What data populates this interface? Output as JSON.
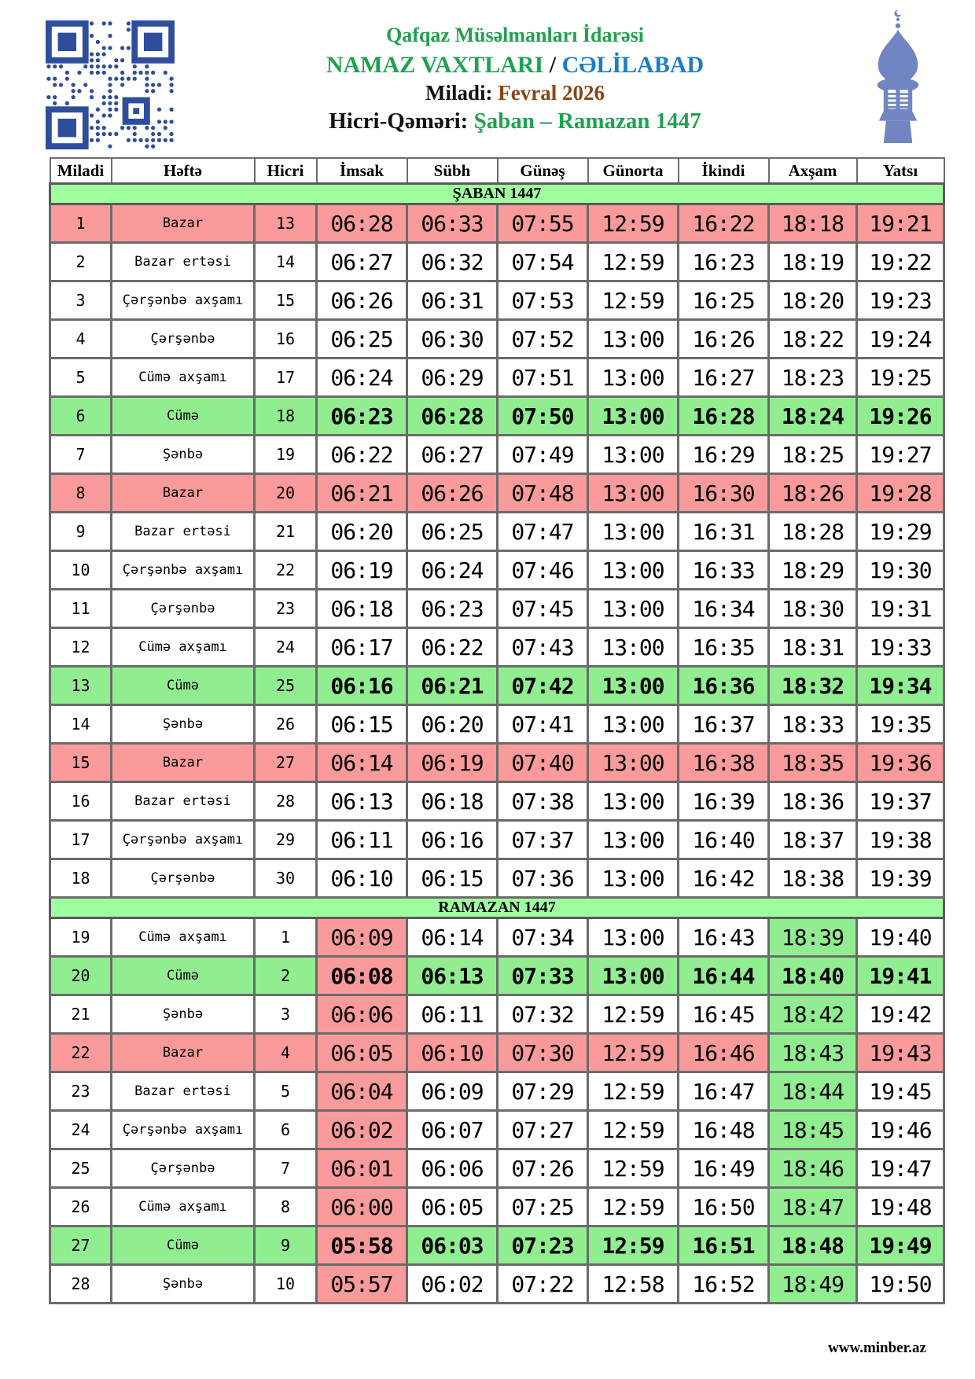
{
  "header": {
    "org": "Qafqaz Müsəlmanları İdarəsi",
    "title_main": "NAMAZ VAXTLARI",
    "title_sep": " / ",
    "city": "CƏLİLABAD",
    "miladi_label": "Miladi: ",
    "miladi_value": "Fevral 2026",
    "hicri_label": "Hicri-Qəməri: ",
    "hicri_value": "Şaban – Ramazan 1447"
  },
  "icons": {
    "qr": "qr-code-icon",
    "minaret": "minaret-icon"
  },
  "colors": {
    "green_text": "#1FA24F",
    "blue_text": "#1B7CC8",
    "brown_text": "#8B4513",
    "sunday_row": "#FA9A9A",
    "friday_row": "#90EE90",
    "section_row": "#A0FFA0",
    "imsak_highlight": "#FA9A9A",
    "axsam_highlight": "#90EE90",
    "qr_blue": "#2E4E9C",
    "minaret_blue": "#7285C3"
  },
  "table": {
    "columns": [
      "Miladi",
      "Həftə",
      "Hicri",
      "İmsak",
      "Sübh",
      "Günəş",
      "Günorta",
      "İkindi",
      "Axşam",
      "Yatsı"
    ],
    "sections": [
      {
        "title": "ŞABAN 1447",
        "imsak_highlight": false,
        "rows": [
          {
            "miladi": "1",
            "hefte": "Bazar",
            "hicri": "13",
            "style": "sunday",
            "times": [
              "06:28",
              "06:33",
              "07:55",
              "12:59",
              "16:22",
              "18:18",
              "19:21"
            ]
          },
          {
            "miladi": "2",
            "hefte": "Bazar ertəsi",
            "hicri": "14",
            "style": "normal",
            "times": [
              "06:27",
              "06:32",
              "07:54",
              "12:59",
              "16:23",
              "18:19",
              "19:22"
            ]
          },
          {
            "miladi": "3",
            "hefte": "Çərşənbə axşamı",
            "hicri": "15",
            "style": "normal",
            "times": [
              "06:26",
              "06:31",
              "07:53",
              "12:59",
              "16:25",
              "18:20",
              "19:23"
            ]
          },
          {
            "miladi": "4",
            "hefte": "Çərşənbə",
            "hicri": "16",
            "style": "normal",
            "times": [
              "06:25",
              "06:30",
              "07:52",
              "13:00",
              "16:26",
              "18:22",
              "19:24"
            ]
          },
          {
            "miladi": "5",
            "hefte": "Cümə axşamı",
            "hicri": "17",
            "style": "normal",
            "times": [
              "06:24",
              "06:29",
              "07:51",
              "13:00",
              "16:27",
              "18:23",
              "19:25"
            ]
          },
          {
            "miladi": "6",
            "hefte": "Cümə",
            "hicri": "18",
            "style": "friday",
            "times": [
              "06:23",
              "06:28",
              "07:50",
              "13:00",
              "16:28",
              "18:24",
              "19:26"
            ]
          },
          {
            "miladi": "7",
            "hefte": "Şənbə",
            "hicri": "19",
            "style": "normal",
            "times": [
              "06:22",
              "06:27",
              "07:49",
              "13:00",
              "16:29",
              "18:25",
              "19:27"
            ]
          },
          {
            "miladi": "8",
            "hefte": "Bazar",
            "hicri": "20",
            "style": "sunday",
            "times": [
              "06:21",
              "06:26",
              "07:48",
              "13:00",
              "16:30",
              "18:26",
              "19:28"
            ]
          },
          {
            "miladi": "9",
            "hefte": "Bazar ertəsi",
            "hicri": "21",
            "style": "normal",
            "times": [
              "06:20",
              "06:25",
              "07:47",
              "13:00",
              "16:31",
              "18:28",
              "19:29"
            ]
          },
          {
            "miladi": "10",
            "hefte": "Çərşənbə axşamı",
            "hicri": "22",
            "style": "normal",
            "times": [
              "06:19",
              "06:24",
              "07:46",
              "13:00",
              "16:33",
              "18:29",
              "19:30"
            ]
          },
          {
            "miladi": "11",
            "hefte": "Çərşənbə",
            "hicri": "23",
            "style": "normal",
            "times": [
              "06:18",
              "06:23",
              "07:45",
              "13:00",
              "16:34",
              "18:30",
              "19:31"
            ]
          },
          {
            "miladi": "12",
            "hefte": "Cümə axşamı",
            "hicri": "24",
            "style": "normal",
            "times": [
              "06:17",
              "06:22",
              "07:43",
              "13:00",
              "16:35",
              "18:31",
              "19:33"
            ]
          },
          {
            "miladi": "13",
            "hefte": "Cümə",
            "hicri": "25",
            "style": "friday",
            "times": [
              "06:16",
              "06:21",
              "07:42",
              "13:00",
              "16:36",
              "18:32",
              "19:34"
            ]
          },
          {
            "miladi": "14",
            "hefte": "Şənbə",
            "hicri": "26",
            "style": "normal",
            "times": [
              "06:15",
              "06:20",
              "07:41",
              "13:00",
              "16:37",
              "18:33",
              "19:35"
            ]
          },
          {
            "miladi": "15",
            "hefte": "Bazar",
            "hicri": "27",
            "style": "sunday",
            "times": [
              "06:14",
              "06:19",
              "07:40",
              "13:00",
              "16:38",
              "18:35",
              "19:36"
            ]
          },
          {
            "miladi": "16",
            "hefte": "Bazar ertəsi",
            "hicri": "28",
            "style": "normal",
            "times": [
              "06:13",
              "06:18",
              "07:38",
              "13:00",
              "16:39",
              "18:36",
              "19:37"
            ]
          },
          {
            "miladi": "17",
            "hefte": "Çərşənbə axşamı",
            "hicri": "29",
            "style": "normal",
            "times": [
              "06:11",
              "06:16",
              "07:37",
              "13:00",
              "16:40",
              "18:37",
              "19:38"
            ]
          },
          {
            "miladi": "18",
            "hefte": "Çərşənbə",
            "hicri": "30",
            "style": "normal",
            "times": [
              "06:10",
              "06:15",
              "07:36",
              "13:00",
              "16:42",
              "18:38",
              "19:39"
            ]
          }
        ]
      },
      {
        "title": "RAMAZAN 1447",
        "imsak_highlight": true,
        "rows": [
          {
            "miladi": "19",
            "hefte": "Cümə axşamı",
            "hicri": "1",
            "style": "normal",
            "times": [
              "06:09",
              "06:14",
              "07:34",
              "13:00",
              "16:43",
              "18:39",
              "19:40"
            ]
          },
          {
            "miladi": "20",
            "hefte": "Cümə",
            "hicri": "2",
            "style": "friday",
            "times": [
              "06:08",
              "06:13",
              "07:33",
              "13:00",
              "16:44",
              "18:40",
              "19:41"
            ]
          },
          {
            "miladi": "21",
            "hefte": "Şənbə",
            "hicri": "3",
            "style": "normal",
            "times": [
              "06:06",
              "06:11",
              "07:32",
              "12:59",
              "16:45",
              "18:42",
              "19:42"
            ]
          },
          {
            "miladi": "22",
            "hefte": "Bazar",
            "hicri": "4",
            "style": "sunday",
            "times": [
              "06:05",
              "06:10",
              "07:30",
              "12:59",
              "16:46",
              "18:43",
              "19:43"
            ]
          },
          {
            "miladi": "23",
            "hefte": "Bazar ertəsi",
            "hicri": "5",
            "style": "normal",
            "times": [
              "06:04",
              "06:09",
              "07:29",
              "12:59",
              "16:47",
              "18:44",
              "19:45"
            ]
          },
          {
            "miladi": "24",
            "hefte": "Çərşənbə axşamı",
            "hicri": "6",
            "style": "normal",
            "times": [
              "06:02",
              "06:07",
              "07:27",
              "12:59",
              "16:48",
              "18:45",
              "19:46"
            ]
          },
          {
            "miladi": "25",
            "hefte": "Çərşənbə",
            "hicri": "7",
            "style": "normal",
            "times": [
              "06:01",
              "06:06",
              "07:26",
              "12:59",
              "16:49",
              "18:46",
              "19:47"
            ]
          },
          {
            "miladi": "26",
            "hefte": "Cümə axşamı",
            "hicri": "8",
            "style": "normal",
            "times": [
              "06:00",
              "06:05",
              "07:25",
              "12:59",
              "16:50",
              "18:47",
              "19:48"
            ]
          },
          {
            "miladi": "27",
            "hefte": "Cümə",
            "hicri": "9",
            "style": "friday",
            "times": [
              "05:58",
              "06:03",
              "07:23",
              "12:59",
              "16:51",
              "18:48",
              "19:49"
            ]
          },
          {
            "miladi": "28",
            "hefte": "Şənbə",
            "hicri": "10",
            "style": "normal",
            "times": [
              "05:57",
              "06:02",
              "07:22",
              "12:58",
              "16:52",
              "18:49",
              "19:50"
            ]
          }
        ]
      }
    ]
  },
  "footer": {
    "site": "www.minber.az"
  }
}
